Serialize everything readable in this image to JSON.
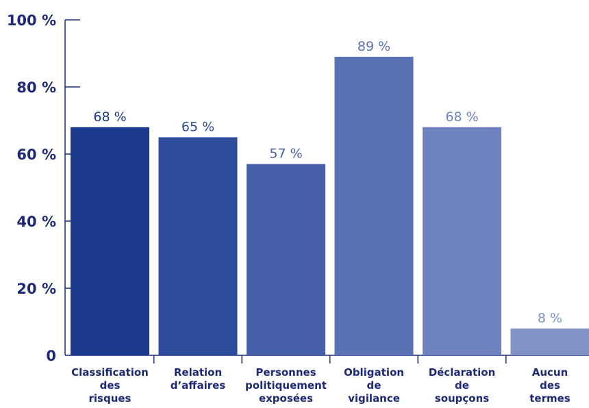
{
  "chart_data": {
    "type": "bar",
    "title": "",
    "xlabel": "",
    "ylabel": "",
    "ylim": [
      0,
      100
    ],
    "yticks": [
      0,
      20,
      40,
      60,
      80,
      100
    ],
    "ytick_labels": [
      "0",
      "20 %",
      "40 %",
      "60 %",
      "80 %",
      "100 %"
    ],
    "categories": [
      [
        "Classification",
        "des",
        "risques"
      ],
      [
        "Relation",
        "d’affaires"
      ],
      [
        "Personnes",
        "politiquement",
        "exposées"
      ],
      [
        "Obligation",
        "de",
        "vigilance"
      ],
      [
        "Déclaration",
        "de",
        "soupçons"
      ],
      [
        "Aucun",
        "des",
        "termes"
      ]
    ],
    "values": [
      68,
      65,
      57,
      89,
      68,
      8
    ],
    "value_labels": [
      "68 %",
      "65 %",
      "57 %",
      "89 %",
      "68 %",
      "8 %"
    ],
    "colors": [
      "#1b3a8d",
      "#2d4d9c",
      "#4560a9",
      "#5872b5",
      "#6d82bf",
      "#8192c9"
    ],
    "label_colors": [
      "#1b3a8d",
      "#2d4d9c",
      "#4560a9",
      "#5872b5",
      "#6d82bf",
      "#8192c9"
    ],
    "grid": false,
    "legend": "none"
  }
}
